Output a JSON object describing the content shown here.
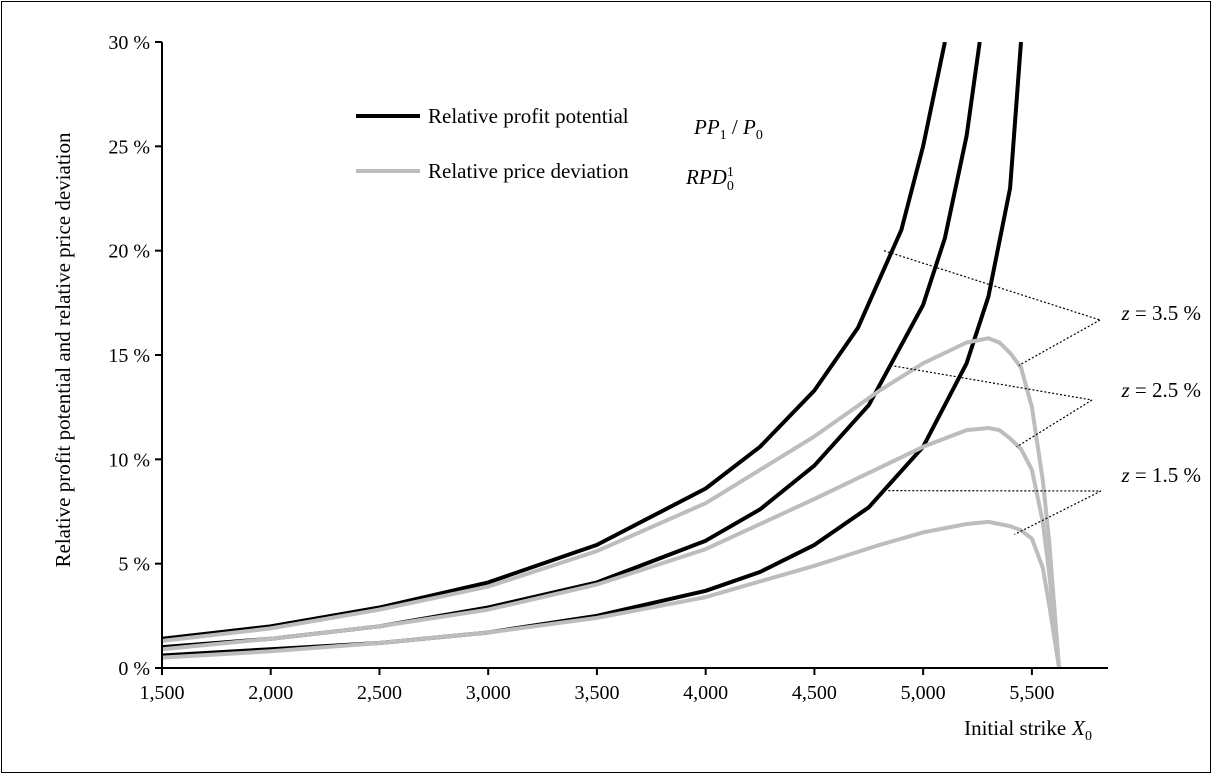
{
  "chart_data": {
    "type": "line",
    "xlabel": "Initial strike",
    "xlabel_symbol": "X",
    "xlabel_subscript": "0",
    "ylabel": "Relative profit potential and relative price deviation",
    "xlim": [
      1500,
      5850
    ],
    "ylim": [
      0,
      30
    ],
    "x_ticks": [
      1500,
      2000,
      2500,
      3000,
      3500,
      4000,
      4500,
      5000,
      5500
    ],
    "x_tick_labels": [
      "1,500",
      "2,000",
      "2,500",
      "3,000",
      "3,500",
      "4,000",
      "4,500",
      "5,000",
      "5,500"
    ],
    "y_ticks": [
      0,
      5,
      10,
      15,
      20,
      25,
      30
    ],
    "y_tick_labels": [
      "0 %",
      "5 %",
      "10 %",
      "15 %",
      "20 %",
      "25 %",
      "30 %"
    ],
    "grid": false,
    "legend": {
      "placement": "top-left",
      "entries": [
        {
          "label": "Relative profit potential",
          "symbol": "PP",
          "sub1": "1",
          "mid": " / ",
          "symbol2": "P",
          "sub2": "0",
          "color": "#000000"
        },
        {
          "label": "Relative price deviation",
          "symbol": "RPD",
          "sub1": "0",
          "sup1": "1",
          "color": "#bdbdbd"
        }
      ]
    },
    "annotations": [
      {
        "var": "z",
        "text": " = 3.5 %"
      },
      {
        "var": "z",
        "text": " = 2.5 %"
      },
      {
        "var": "z",
        "text": " = 1.5 %"
      }
    ],
    "series": [
      {
        "group": "Relative profit potential",
        "z": "3.5 %",
        "color": "#000000",
        "x": [
          1500,
          2000,
          2500,
          3000,
          3500,
          4000,
          4250,
          4500,
          4700,
          4900,
          5000,
          5100
        ],
        "y": [
          1.4,
          2.0,
          2.9,
          4.1,
          5.9,
          8.6,
          10.6,
          13.3,
          16.3,
          21.0,
          25.0,
          30.0
        ]
      },
      {
        "group": "Relative profit potential",
        "z": "2.5 %",
        "color": "#000000",
        "x": [
          1500,
          2000,
          2500,
          3000,
          3500,
          4000,
          4250,
          4500,
          4750,
          5000,
          5100,
          5200,
          5260
        ],
        "y": [
          1.0,
          1.4,
          2.0,
          2.9,
          4.1,
          6.1,
          7.6,
          9.7,
          12.6,
          17.4,
          20.6,
          25.5,
          30.0
        ]
      },
      {
        "group": "Relative profit potential",
        "z": "1.5 %",
        "color": "#000000",
        "x": [
          1500,
          2000,
          2500,
          3000,
          3500,
          4000,
          4250,
          4500,
          4750,
          5000,
          5200,
          5300,
          5400,
          5450
        ],
        "y": [
          0.6,
          0.9,
          1.2,
          1.7,
          2.5,
          3.7,
          4.6,
          5.9,
          7.7,
          10.6,
          14.6,
          17.8,
          23.0,
          30.0
        ]
      },
      {
        "group": "Relative price deviation",
        "z": "3.5 %",
        "color": "#bdbdbd",
        "x": [
          1500,
          2000,
          2500,
          3000,
          3500,
          4000,
          4500,
          4800,
          5000,
          5200,
          5300,
          5350,
          5400,
          5450,
          5500,
          5550,
          5580,
          5610,
          5625
        ],
        "y": [
          1.3,
          1.9,
          2.8,
          3.9,
          5.6,
          7.9,
          11.1,
          13.3,
          14.6,
          15.6,
          15.8,
          15.6,
          15.1,
          14.4,
          12.5,
          9.0,
          6.0,
          2.0,
          0.0
        ]
      },
      {
        "group": "Relative price deviation",
        "z": "2.5 %",
        "color": "#bdbdbd",
        "x": [
          1500,
          2000,
          2500,
          3000,
          3500,
          4000,
          4500,
          4800,
          5000,
          5200,
          5300,
          5350,
          5400,
          5450,
          5500,
          5550,
          5580,
          5610,
          5625
        ],
        "y": [
          0.9,
          1.4,
          2.0,
          2.8,
          4.0,
          5.7,
          8.1,
          9.6,
          10.6,
          11.4,
          11.5,
          11.4,
          11.0,
          10.5,
          9.5,
          7.0,
          4.5,
          1.5,
          0.0
        ]
      },
      {
        "group": "Relative price deviation",
        "z": "1.5 %",
        "color": "#bdbdbd",
        "x": [
          1500,
          2000,
          2500,
          3000,
          3500,
          4000,
          4500,
          4800,
          5000,
          5200,
          5300,
          5350,
          5400,
          5450,
          5500,
          5550,
          5580,
          5610,
          5625
        ],
        "y": [
          0.5,
          0.8,
          1.2,
          1.7,
          2.4,
          3.4,
          4.9,
          5.9,
          6.5,
          6.9,
          7.0,
          6.9,
          6.8,
          6.6,
          6.2,
          4.8,
          3.0,
          1.0,
          0.0
        ]
      }
    ]
  }
}
